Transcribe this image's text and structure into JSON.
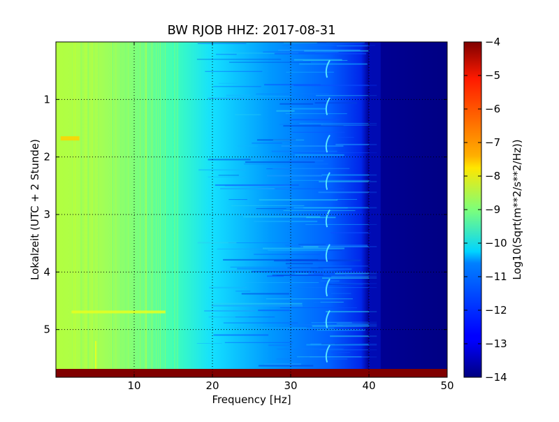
{
  "chart_data": {
    "type": "heatmap",
    "title": "BW RJOB HHZ: 2017-08-31",
    "xlabel": "Frequency [Hz]",
    "ylabel": "Lokalzeit (UTC + 2 Stunde)",
    "xlim": [
      0,
      50
    ],
    "ylim": [
      5.83,
      0
    ],
    "x_ticks": [
      10,
      20,
      30,
      40,
      50
    ],
    "x_tick_labels": [
      "10",
      "20",
      "30",
      "40",
      "50"
    ],
    "y_ticks": [
      1,
      2,
      3,
      4,
      5
    ],
    "y_tick_labels": [
      "1",
      "2",
      "3",
      "4",
      "5"
    ],
    "grid": true,
    "colormap": "jet",
    "colorbar": {
      "label": "Log10(Sqrt(m**2/s**2/Hz))",
      "range": [
        -14,
        -4
      ],
      "ticks": [
        -4,
        -5,
        -6,
        -7,
        -8,
        -9,
        -10,
        -11,
        -12,
        -13,
        -14
      ],
      "tick_labels": [
        "−4",
        "−5",
        "−6",
        "−7",
        "−8",
        "−9",
        "−10",
        "−11",
        "−12",
        "−13",
        "−14"
      ]
    },
    "approx_level_by_frequency": [
      {
        "freq_hz": 1,
        "value": -8.6
      },
      {
        "freq_hz": 10,
        "value": -9.0
      },
      {
        "freq_hz": 20,
        "value": -10.6
      },
      {
        "freq_hz": 30,
        "value": -11.6
      },
      {
        "freq_hz": 38,
        "value": -12.3
      },
      {
        "freq_hz": 41,
        "value": -14.0
      },
      {
        "freq_hz": 50,
        "value": -14.0
      }
    ]
  }
}
